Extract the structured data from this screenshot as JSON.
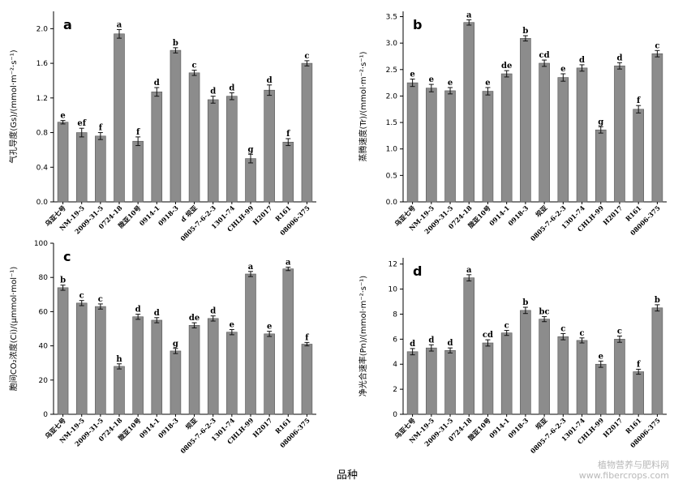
{
  "x_title": "品种",
  "watermark": {
    "line1": "植物营养与肥料网",
    "line2": "www.fibercrops.com"
  },
  "chart_data": [
    {
      "panel": "a",
      "type": "bar",
      "ylabel": "气孔导度(Gs)/(mmol·m⁻²·s⁻¹)",
      "ylim": [
        0,
        2.2
      ],
      "yticks": [
        "0.0",
        "0.4",
        "0.8",
        "1.2",
        "1.6",
        "2.0"
      ],
      "categories": [
        "乌亚七号",
        "NM-19-5",
        "2009-31-5",
        "0724-18",
        "陇亚10号",
        "0914-1",
        "0918-3",
        "ɗ 坝亚",
        "0805-7-6-2-3",
        "1301-74",
        "CHLH-99",
        "H2017",
        "R161",
        "08006-375"
      ],
      "values": [
        0.92,
        0.8,
        0.76,
        1.94,
        0.7,
        1.27,
        1.75,
        1.49,
        1.18,
        1.22,
        0.5,
        1.29,
        0.69,
        1.6
      ],
      "errors": [
        0.02,
        0.05,
        0.04,
        0.05,
        0.05,
        0.05,
        0.03,
        0.03,
        0.04,
        0.04,
        0.05,
        0.06,
        0.04,
        0.03
      ],
      "letters": [
        "e",
        "ef",
        "f",
        "a",
        "f",
        "d",
        "b",
        "c",
        "d",
        "d",
        "g",
        "d",
        "f",
        "c"
      ]
    },
    {
      "panel": "b",
      "type": "bar",
      "ylabel": "蒸腾速度(Tr)/(mmol·m⁻²·s⁻¹)",
      "ylim": [
        0,
        3.6
      ],
      "yticks": [
        "0.0",
        "0.5",
        "1.0",
        "1.5",
        "2.0",
        "2.5",
        "3.0",
        "3.5"
      ],
      "categories": [
        "乌亚七号",
        "NM-19-5",
        "2009-31-5",
        "0724-18",
        "陇亚10号",
        "0914-1",
        "0918-3",
        "坝亚",
        "0805-7-6-2-3",
        "1301-74",
        "CHLH-99",
        "H2017",
        "R161",
        "08006-375"
      ],
      "values": [
        2.25,
        2.15,
        2.1,
        3.39,
        2.09,
        2.42,
        3.09,
        2.62,
        2.35,
        2.53,
        1.36,
        2.57,
        1.75,
        2.8
      ],
      "errors": [
        0.07,
        0.07,
        0.06,
        0.05,
        0.07,
        0.06,
        0.05,
        0.06,
        0.07,
        0.06,
        0.06,
        0.06,
        0.07,
        0.06
      ],
      "letters": [
        "e",
        "e",
        "e",
        "a",
        "e",
        "de",
        "b",
        "cd",
        "e",
        "d",
        "g",
        "d",
        "f",
        "c"
      ]
    },
    {
      "panel": "c",
      "type": "bar",
      "ylabel": "胞间CO₂浓度(Ci)/(μmmol·mol⁻¹)",
      "ylim": [
        0,
        100
      ],
      "yticks": [
        "0",
        "20",
        "40",
        "60",
        "80",
        "100"
      ],
      "categories": [
        "乌亚七号",
        "NM-19-5",
        "2009-31-5",
        "0724-18",
        "陇亚10号",
        "0914-1",
        "0918-3",
        "坝亚",
        "0805-7-6-2-3",
        "1301-74",
        "CHLH-99",
        "H2017",
        "R161",
        "08006-375"
      ],
      "values": [
        74,
        65,
        63,
        28,
        57,
        55,
        37,
        52,
        56,
        48,
        82,
        47,
        85,
        41
      ],
      "errors": [
        1.5,
        1.5,
        1.5,
        1.5,
        1.5,
        1.5,
        1.5,
        1.5,
        1.5,
        1.5,
        1.5,
        1.5,
        1.0,
        1.0
      ],
      "letters": [
        "b",
        "c",
        "c",
        "h",
        "d",
        "d",
        "g",
        "de",
        "d",
        "e",
        "a",
        "e",
        "a",
        "f"
      ]
    },
    {
      "panel": "d",
      "type": "bar",
      "ylabel": "净光合速率(Pn)/(mmol·m⁻²·s⁻¹)",
      "ylim": [
        0,
        12.5
      ],
      "yticks": [
        "0",
        "2",
        "4",
        "6",
        "8",
        "10",
        "12"
      ],
      "categories": [
        "乌亚七号",
        "NM-19-5",
        "2009-31-5",
        "0724-18",
        "陇亚10号",
        "0914-1",
        "0918-3",
        "坝亚",
        "0805-7-6-2-3",
        "1301-74",
        "CHLH-99",
        "H2017",
        "R161",
        "08006-375"
      ],
      "values": [
        5.0,
        5.3,
        5.1,
        10.9,
        5.7,
        6.5,
        8.3,
        7.6,
        6.2,
        5.9,
        4.0,
        6.0,
        3.4,
        8.5
      ],
      "errors": [
        0.25,
        0.25,
        0.2,
        0.25,
        0.25,
        0.2,
        0.25,
        0.2,
        0.25,
        0.2,
        0.25,
        0.25,
        0.2,
        0.25
      ],
      "letters": [
        "d",
        "d",
        "d",
        "a",
        "cd",
        "c",
        "b",
        "bc",
        "c",
        "c",
        "e",
        "c",
        "f",
        "b"
      ]
    }
  ]
}
